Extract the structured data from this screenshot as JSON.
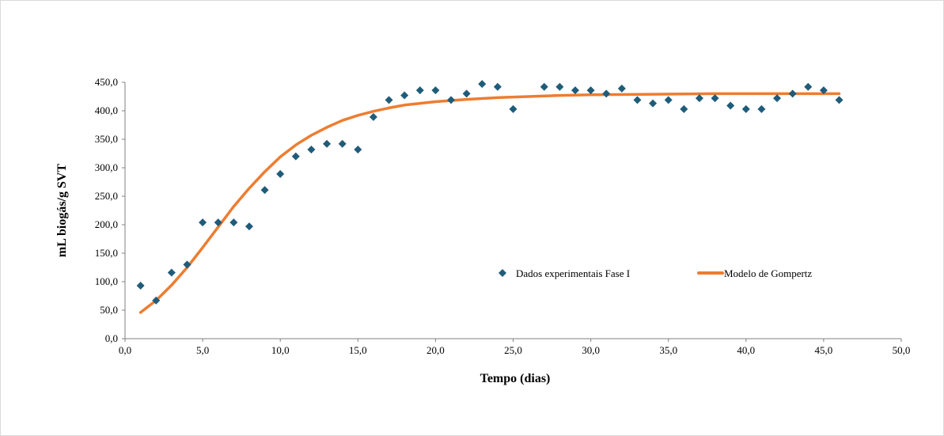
{
  "chart_data": {
    "type": "scatter",
    "title": "",
    "xlabel": "Tempo (dias)",
    "ylabel": "mL biogás/g SVT",
    "xlim": [
      0,
      50
    ],
    "ylim": [
      0,
      450
    ],
    "x_ticks": [
      "0,0",
      "5,0",
      "10,0",
      "15,0",
      "20,0",
      "25,0",
      "30,0",
      "35,0",
      "40,0",
      "45,0",
      "50,0"
    ],
    "y_ticks": [
      "0,0",
      "50,0",
      "100,0",
      "150,0",
      "200,0",
      "250,0",
      "300,0",
      "350,0",
      "400,0",
      "450,0"
    ],
    "grid": false,
    "legend_position": "center-right",
    "series": [
      {
        "name": "Dados experimentais Fase I",
        "kind": "markers",
        "marker": "diamond",
        "color": "#1f5c7a",
        "points": [
          [
            1,
            93
          ],
          [
            2,
            67
          ],
          [
            3,
            116
          ],
          [
            4,
            130
          ],
          [
            5,
            204
          ],
          [
            6,
            204
          ],
          [
            7,
            204
          ],
          [
            8,
            197
          ],
          [
            9,
            261
          ],
          [
            10,
            289
          ],
          [
            11,
            320
          ],
          [
            12,
            332
          ],
          [
            13,
            342
          ],
          [
            14,
            342
          ],
          [
            15,
            332
          ],
          [
            16,
            389
          ],
          [
            17,
            419
          ],
          [
            18,
            427
          ],
          [
            19,
            436
          ],
          [
            20,
            436
          ],
          [
            21,
            419
          ],
          [
            22,
            430
          ],
          [
            23,
            447
          ],
          [
            24,
            442
          ],
          [
            25,
            403
          ],
          [
            27,
            442
          ],
          [
            28,
            442
          ],
          [
            29,
            436
          ],
          [
            30,
            436
          ],
          [
            31,
            430
          ],
          [
            32,
            439
          ],
          [
            33,
            419
          ],
          [
            34,
            413
          ],
          [
            35,
            419
          ],
          [
            36,
            403
          ],
          [
            37,
            422
          ],
          [
            38,
            422
          ],
          [
            39,
            409
          ],
          [
            40,
            403
          ],
          [
            41,
            403
          ],
          [
            42,
            422
          ],
          [
            43,
            430
          ],
          [
            44,
            442
          ],
          [
            45,
            436
          ],
          [
            46,
            419
          ]
        ]
      },
      {
        "name": "Modelo de Gompertz",
        "kind": "line",
        "color": "#ed7d31",
        "points": [
          [
            1,
            46
          ],
          [
            2,
            67
          ],
          [
            3,
            94
          ],
          [
            4,
            125
          ],
          [
            5,
            160
          ],
          [
            6,
            196
          ],
          [
            7,
            232
          ],
          [
            8,
            264
          ],
          [
            9,
            293
          ],
          [
            10,
            319
          ],
          [
            11,
            340
          ],
          [
            12,
            357
          ],
          [
            13,
            371
          ],
          [
            14,
            383
          ],
          [
            15,
            392
          ],
          [
            16,
            399
          ],
          [
            17,
            405
          ],
          [
            18,
            410
          ],
          [
            19,
            413
          ],
          [
            20,
            416
          ],
          [
            22,
            420
          ],
          [
            24,
            423
          ],
          [
            26,
            425
          ],
          [
            28,
            427
          ],
          [
            30,
            428
          ],
          [
            34,
            429
          ],
          [
            38,
            430
          ],
          [
            42,
            430
          ],
          [
            46,
            430
          ]
        ]
      }
    ]
  }
}
